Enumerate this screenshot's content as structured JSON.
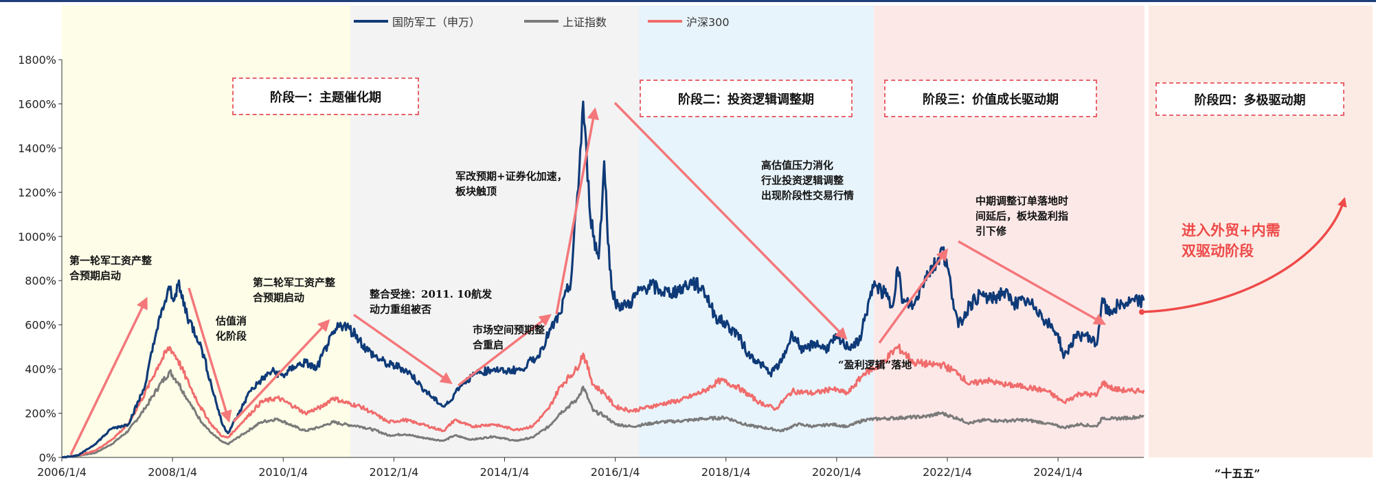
{
  "colors": {
    "defense": "#0e3a78",
    "shanghai": "#7a7a7a",
    "csi300": "#f06c6c",
    "stage1_bg": "#fdfde8",
    "stage2_bg": "#f3f3f3",
    "stage3_bg": "#e8f4fb",
    "stage4_bg": "#fde8e8",
    "future_bg": "#fcebe4",
    "arrow": "#f4777a"
  },
  "legend": [
    "国防军工（申万）",
    "上证指数",
    "沪深300"
  ],
  "stages": {
    "s1": "阶段一：主题催化期",
    "s2": "阶段二：投资逻辑调整期",
    "s3": "阶段三：价值成长驱动期",
    "s4": "阶段四：多极驱动期"
  },
  "annotations": {
    "a1": "第一轮军工资产整\n合预期启动",
    "a2": "估值消\n化阶段",
    "a3": "第二轮军工资产整\n合预期启动",
    "a4": "整合受挫：2011. 10航发\n动力重组被否",
    "a5": "市场空间预期整\n合重启",
    "a6": "军改预期+证券化加速，\n板块触顶",
    "a7": "高估值压力消化\n行业投资逻辑调整\n出现阶段性交易行情",
    "a8": "“盈利逻辑”落地",
    "a9": "中期调整订单落地时\n间延后，板块盈利指\n引下修",
    "a10": "进入外贸+内需\n双驱动阶段"
  },
  "future_label": "“十五五”",
  "chart_data": {
    "type": "line",
    "title": "",
    "xlabel": "",
    "ylabel": "",
    "ylim": [
      0,
      1800
    ],
    "y_unit": "%",
    "yticks": [
      "0%",
      "200%",
      "400%",
      "600%",
      "800%",
      "1000%",
      "1200%",
      "1400%",
      "1600%",
      "1800%"
    ],
    "xticks": [
      "2006/1/4",
      "2008/1/4",
      "2010/1/4",
      "2012/1/4",
      "2014/1/4",
      "2016/1/4",
      "2018/1/4",
      "2020/1/4",
      "2022/1/4",
      "2024/1/4"
    ],
    "x_range": [
      2006.0,
      2025.55
    ],
    "grid": false,
    "legend_position": "top",
    "series": [
      {
        "name": "国防军工（申万）",
        "points": [
          [
            2006.0,
            0
          ],
          [
            2006.3,
            10
          ],
          [
            2006.6,
            60
          ],
          [
            2006.9,
            130
          ],
          [
            2007.2,
            150
          ],
          [
            2007.5,
            320
          ],
          [
            2007.7,
            560
          ],
          [
            2007.85,
            690
          ],
          [
            2007.95,
            760
          ],
          [
            2008.0,
            720
          ],
          [
            2008.1,
            780
          ],
          [
            2008.3,
            620
          ],
          [
            2008.5,
            520
          ],
          [
            2008.7,
            330
          ],
          [
            2008.9,
            150
          ],
          [
            2009.0,
            110
          ],
          [
            2009.2,
            200
          ],
          [
            2009.4,
            300
          ],
          [
            2009.6,
            350
          ],
          [
            2009.8,
            390
          ],
          [
            2010.0,
            370
          ],
          [
            2010.2,
            410
          ],
          [
            2010.4,
            430
          ],
          [
            2010.6,
            400
          ],
          [
            2010.8,
            510
          ],
          [
            2011.0,
            590
          ],
          [
            2011.1,
            600
          ],
          [
            2011.3,
            560
          ],
          [
            2011.5,
            490
          ],
          [
            2011.7,
            450
          ],
          [
            2011.9,
            420
          ],
          [
            2012.1,
            410
          ],
          [
            2012.3,
            380
          ],
          [
            2012.5,
            320
          ],
          [
            2012.7,
            270
          ],
          [
            2012.9,
            230
          ],
          [
            2013.0,
            250
          ],
          [
            2013.2,
            330
          ],
          [
            2013.5,
            380
          ],
          [
            2013.8,
            400
          ],
          [
            2014.0,
            390
          ],
          [
            2014.3,
            400
          ],
          [
            2014.6,
            460
          ],
          [
            2014.8,
            560
          ],
          [
            2015.0,
            650
          ],
          [
            2015.2,
            800
          ],
          [
            2015.35,
            1300
          ],
          [
            2015.42,
            1610
          ],
          [
            2015.5,
            1250
          ],
          [
            2015.6,
            1000
          ],
          [
            2015.7,
            900
          ],
          [
            2015.8,
            1340
          ],
          [
            2015.9,
            850
          ],
          [
            2016.0,
            700
          ],
          [
            2016.2,
            680
          ],
          [
            2016.4,
            740
          ],
          [
            2016.6,
            780
          ],
          [
            2016.8,
            760
          ],
          [
            2017.0,
            740
          ],
          [
            2017.2,
            770
          ],
          [
            2017.4,
            790
          ],
          [
            2017.6,
            760
          ],
          [
            2017.8,
            640
          ],
          [
            2018.0,
            600
          ],
          [
            2018.2,
            560
          ],
          [
            2018.4,
            470
          ],
          [
            2018.6,
            430
          ],
          [
            2018.8,
            380
          ],
          [
            2019.0,
            430
          ],
          [
            2019.2,
            560
          ],
          [
            2019.4,
            480
          ],
          [
            2019.6,
            520
          ],
          [
            2019.8,
            490
          ],
          [
            2020.0,
            540
          ],
          [
            2020.2,
            500
          ],
          [
            2020.4,
            520
          ],
          [
            2020.6,
            720
          ],
          [
            2020.7,
            780
          ],
          [
            2020.9,
            730
          ],
          [
            2021.0,
            680
          ],
          [
            2021.1,
            860
          ],
          [
            2021.2,
            700
          ],
          [
            2021.4,
            690
          ],
          [
            2021.6,
            820
          ],
          [
            2021.8,
            880
          ],
          [
            2021.9,
            950
          ],
          [
            2022.0,
            860
          ],
          [
            2022.2,
            590
          ],
          [
            2022.4,
            690
          ],
          [
            2022.6,
            740
          ],
          [
            2022.8,
            710
          ],
          [
            2023.0,
            750
          ],
          [
            2023.2,
            700
          ],
          [
            2023.4,
            700
          ],
          [
            2023.6,
            680
          ],
          [
            2023.8,
            610
          ],
          [
            2024.0,
            560
          ],
          [
            2024.1,
            450
          ],
          [
            2024.3,
            540
          ],
          [
            2024.5,
            560
          ],
          [
            2024.7,
            510
          ],
          [
            2024.8,
            720
          ],
          [
            2024.9,
            650
          ],
          [
            2025.1,
            690
          ],
          [
            2025.3,
            700
          ],
          [
            2025.55,
            710
          ]
        ]
      },
      {
        "name": "上证指数",
        "points": [
          [
            2006.0,
            0
          ],
          [
            2006.3,
            8
          ],
          [
            2006.6,
            20
          ],
          [
            2006.9,
            60
          ],
          [
            2007.2,
            120
          ],
          [
            2007.5,
            220
          ],
          [
            2007.75,
            320
          ],
          [
            2007.95,
            390
          ],
          [
            2008.1,
            340
          ],
          [
            2008.3,
            250
          ],
          [
            2008.5,
            170
          ],
          [
            2008.7,
            110
          ],
          [
            2008.9,
            70
          ],
          [
            2009.0,
            60
          ],
          [
            2009.3,
            110
          ],
          [
            2009.6,
            160
          ],
          [
            2009.9,
            175
          ],
          [
            2010.2,
            140
          ],
          [
            2010.4,
            120
          ],
          [
            2010.7,
            140
          ],
          [
            2010.9,
            160
          ],
          [
            2011.1,
            150
          ],
          [
            2011.4,
            140
          ],
          [
            2011.7,
            120
          ],
          [
            2011.9,
            100
          ],
          [
            2012.2,
            105
          ],
          [
            2012.5,
            90
          ],
          [
            2012.9,
            75
          ],
          [
            2013.1,
            100
          ],
          [
            2013.4,
            80
          ],
          [
            2013.8,
            95
          ],
          [
            2014.2,
            75
          ],
          [
            2014.5,
            90
          ],
          [
            2014.8,
            140
          ],
          [
            2015.0,
            200
          ],
          [
            2015.3,
            260
          ],
          [
            2015.42,
            320
          ],
          [
            2015.6,
            210
          ],
          [
            2015.8,
            190
          ],
          [
            2016.0,
            150
          ],
          [
            2016.3,
            140
          ],
          [
            2016.8,
            160
          ],
          [
            2017.2,
            165
          ],
          [
            2017.6,
            175
          ],
          [
            2018.0,
            180
          ],
          [
            2018.4,
            145
          ],
          [
            2018.8,
            130
          ],
          [
            2019.0,
            120
          ],
          [
            2019.3,
            150
          ],
          [
            2019.6,
            140
          ],
          [
            2019.9,
            150
          ],
          [
            2020.2,
            140
          ],
          [
            2020.5,
            170
          ],
          [
            2020.8,
            175
          ],
          [
            2021.2,
            180
          ],
          [
            2021.6,
            185
          ],
          [
            2021.9,
            200
          ],
          [
            2022.2,
            175
          ],
          [
            2022.4,
            155
          ],
          [
            2022.7,
            170
          ],
          [
            2023.0,
            165
          ],
          [
            2023.4,
            170
          ],
          [
            2023.8,
            155
          ],
          [
            2024.1,
            135
          ],
          [
            2024.4,
            150
          ],
          [
            2024.7,
            140
          ],
          [
            2024.8,
            180
          ],
          [
            2025.0,
            175
          ],
          [
            2025.3,
            180
          ],
          [
            2025.55,
            185
          ]
        ]
      },
      {
        "name": "沪深300",
        "points": [
          [
            2006.0,
            0
          ],
          [
            2006.3,
            10
          ],
          [
            2006.6,
            30
          ],
          [
            2006.9,
            80
          ],
          [
            2007.2,
            150
          ],
          [
            2007.5,
            290
          ],
          [
            2007.75,
            420
          ],
          [
            2007.95,
            500
          ],
          [
            2008.1,
            440
          ],
          [
            2008.3,
            330
          ],
          [
            2008.5,
            230
          ],
          [
            2008.7,
            150
          ],
          [
            2008.9,
            95
          ],
          [
            2009.0,
            90
          ],
          [
            2009.3,
            170
          ],
          [
            2009.6,
            250
          ],
          [
            2009.9,
            270
          ],
          [
            2010.2,
            230
          ],
          [
            2010.4,
            200
          ],
          [
            2010.7,
            230
          ],
          [
            2010.9,
            270
          ],
          [
            2011.1,
            250
          ],
          [
            2011.4,
            230
          ],
          [
            2011.7,
            190
          ],
          [
            2011.9,
            160
          ],
          [
            2012.2,
            170
          ],
          [
            2012.5,
            150
          ],
          [
            2012.9,
            120
          ],
          [
            2013.1,
            170
          ],
          [
            2013.4,
            140
          ],
          [
            2013.8,
            150
          ],
          [
            2014.2,
            125
          ],
          [
            2014.5,
            140
          ],
          [
            2014.8,
            220
          ],
          [
            2015.0,
            320
          ],
          [
            2015.3,
            400
          ],
          [
            2015.42,
            470
          ],
          [
            2015.6,
            330
          ],
          [
            2015.8,
            290
          ],
          [
            2016.0,
            230
          ],
          [
            2016.3,
            210
          ],
          [
            2016.8,
            240
          ],
          [
            2017.2,
            260
          ],
          [
            2017.6,
            300
          ],
          [
            2017.9,
            350
          ],
          [
            2018.2,
            320
          ],
          [
            2018.6,
            250
          ],
          [
            2018.9,
            220
          ],
          [
            2019.2,
            300
          ],
          [
            2019.6,
            290
          ],
          [
            2019.9,
            310
          ],
          [
            2020.2,
            290
          ],
          [
            2020.5,
            380
          ],
          [
            2020.8,
            420
          ],
          [
            2021.1,
            500
          ],
          [
            2021.4,
            430
          ],
          [
            2021.7,
            420
          ],
          [
            2021.9,
            420
          ],
          [
            2022.2,
            380
          ],
          [
            2022.4,
            330
          ],
          [
            2022.7,
            350
          ],
          [
            2023.0,
            330
          ],
          [
            2023.4,
            320
          ],
          [
            2023.8,
            300
          ],
          [
            2024.1,
            250
          ],
          [
            2024.4,
            290
          ],
          [
            2024.7,
            280
          ],
          [
            2024.8,
            340
          ],
          [
            2025.0,
            310
          ],
          [
            2025.3,
            300
          ],
          [
            2025.55,
            305
          ]
        ]
      }
    ]
  }
}
